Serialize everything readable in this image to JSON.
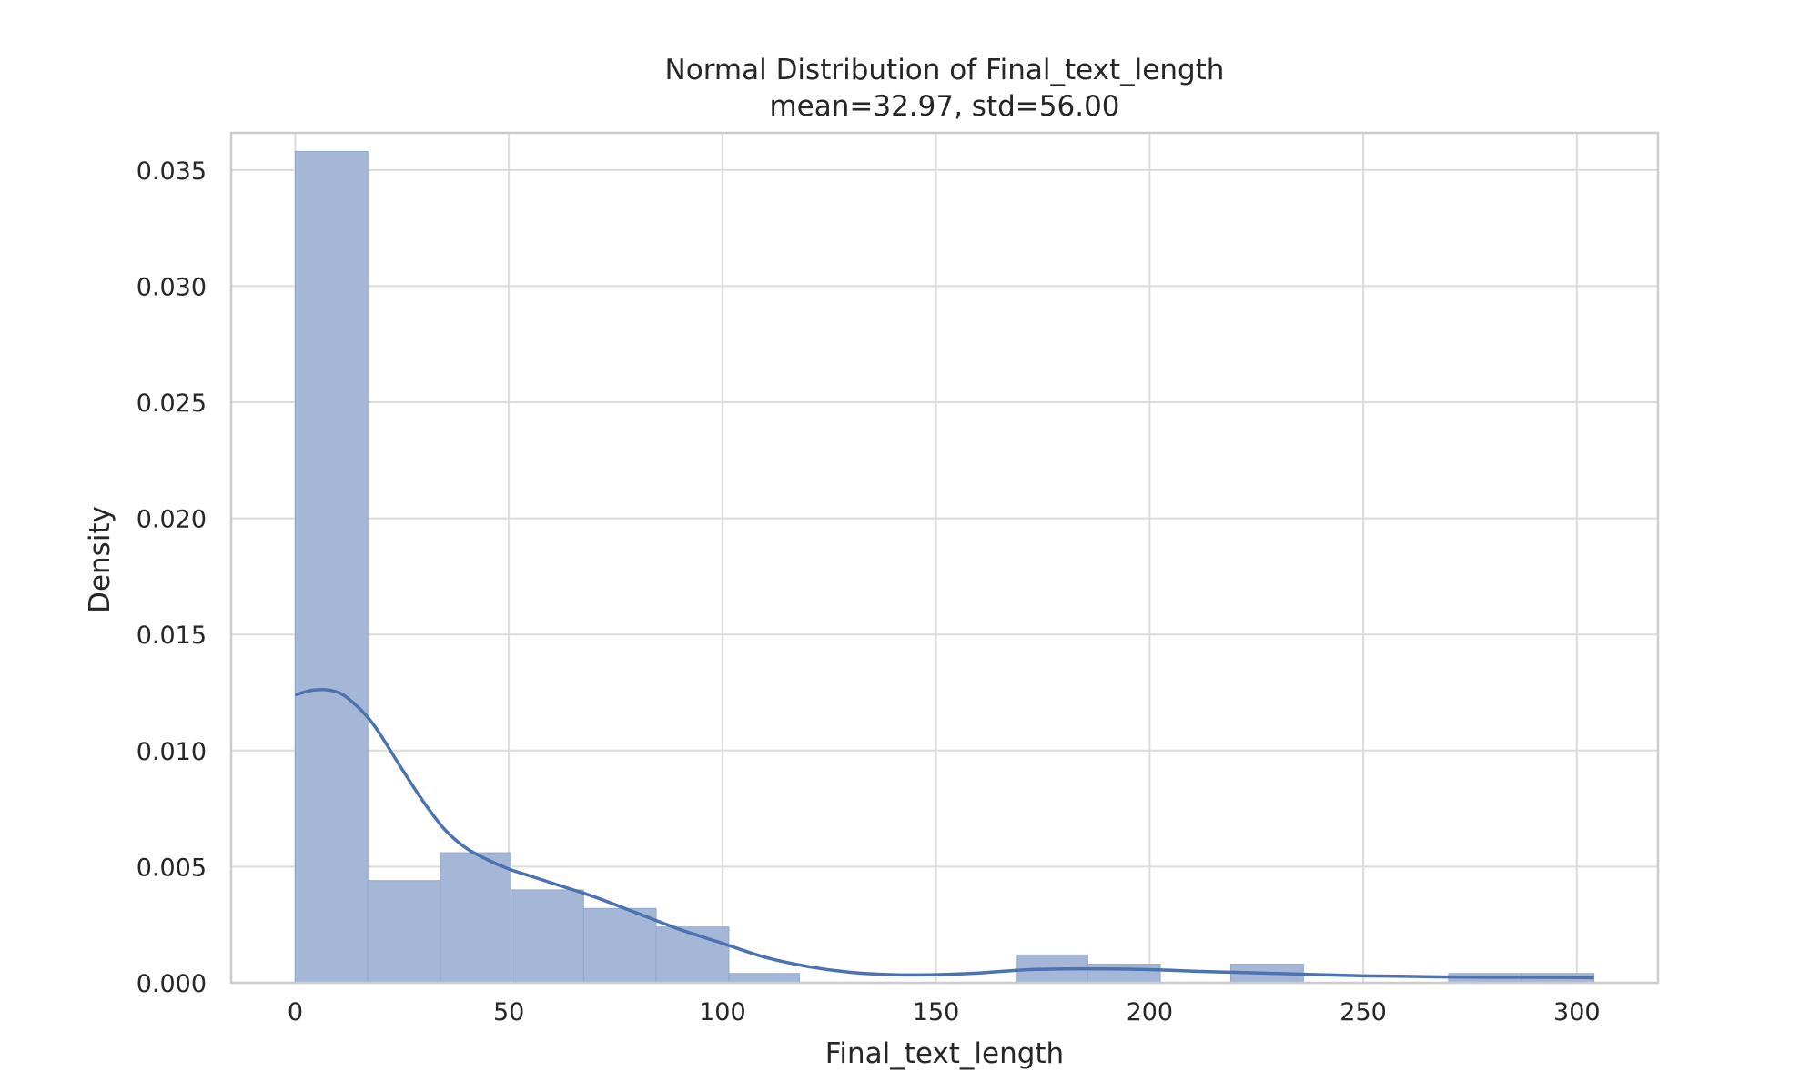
{
  "chart_data": {
    "type": "bar",
    "title": "Normal Distribution of Final_text_length",
    "subtitle": "mean=32.97, std=56.00",
    "xlabel": "Final_text_length",
    "ylabel": "Density",
    "xlim": [
      -15,
      319
    ],
    "ylim": [
      0,
      0.0366
    ],
    "xticks": [
      0,
      50,
      100,
      150,
      200,
      250,
      300
    ],
    "yticks": [
      0.0,
      0.005,
      0.01,
      0.015,
      0.02,
      0.025,
      0.03,
      0.035
    ],
    "ytick_labels": [
      "0.000",
      "0.005",
      "0.010",
      "0.015",
      "0.020",
      "0.025",
      "0.030",
      "0.035"
    ],
    "grid": true,
    "bins": [
      {
        "x0": 0,
        "x1": 17,
        "density": 0.0358
      },
      {
        "x0": 17,
        "x1": 34,
        "density": 0.0044
      },
      {
        "x0": 34,
        "x1": 50.5,
        "density": 0.0056
      },
      {
        "x0": 50.5,
        "x1": 67.5,
        "density": 0.004
      },
      {
        "x0": 67.5,
        "x1": 84.5,
        "density": 0.0032
      },
      {
        "x0": 84.5,
        "x1": 101.5,
        "density": 0.0024
      },
      {
        "x0": 101.5,
        "x1": 118,
        "density": 0.0004
      },
      {
        "x0": 118,
        "x1": 135,
        "density": 0
      },
      {
        "x0": 135,
        "x1": 152,
        "density": 0
      },
      {
        "x0": 152,
        "x1": 169,
        "density": 0
      },
      {
        "x0": 169,
        "x1": 185.5,
        "density": 0.0012
      },
      {
        "x0": 185.5,
        "x1": 202.5,
        "density": 0.0008
      },
      {
        "x0": 202.5,
        "x1": 219,
        "density": 0
      },
      {
        "x0": 219,
        "x1": 236,
        "density": 0.0008
      },
      {
        "x0": 236,
        "x1": 253,
        "density": 0
      },
      {
        "x0": 253,
        "x1": 270,
        "density": 0
      },
      {
        "x0": 270,
        "x1": 287,
        "density": 0.0004
      },
      {
        "x0": 287,
        "x1": 304,
        "density": 0.0004
      }
    ],
    "kde": {
      "x": [
        0,
        4,
        8,
        12,
        18,
        25,
        30,
        35,
        40,
        45,
        50,
        55,
        60,
        70,
        80,
        90,
        100,
        110,
        120,
        130,
        140,
        150,
        160,
        170,
        180,
        190,
        200,
        210,
        220,
        230,
        240,
        250,
        260,
        270,
        280,
        290,
        300,
        304
      ],
      "y": [
        0.0124,
        0.0126,
        0.0126,
        0.0123,
        0.0112,
        0.0092,
        0.0078,
        0.0066,
        0.0058,
        0.0053,
        0.0049,
        0.0046,
        0.0043,
        0.0037,
        0.003,
        0.0023,
        0.0017,
        0.0011,
        0.0007,
        0.00045,
        0.00035,
        0.00035,
        0.00042,
        0.00055,
        0.0006,
        0.0006,
        0.00057,
        0.0005,
        0.00045,
        0.0004,
        0.00035,
        0.0003,
        0.00028,
        0.00025,
        0.00024,
        0.00024,
        0.00023,
        0.00022
      ]
    },
    "colors": {
      "bar_fill": "#a5b7d7",
      "bar_edge": "#91a7cd",
      "kde_line": "#4c72b0"
    }
  }
}
